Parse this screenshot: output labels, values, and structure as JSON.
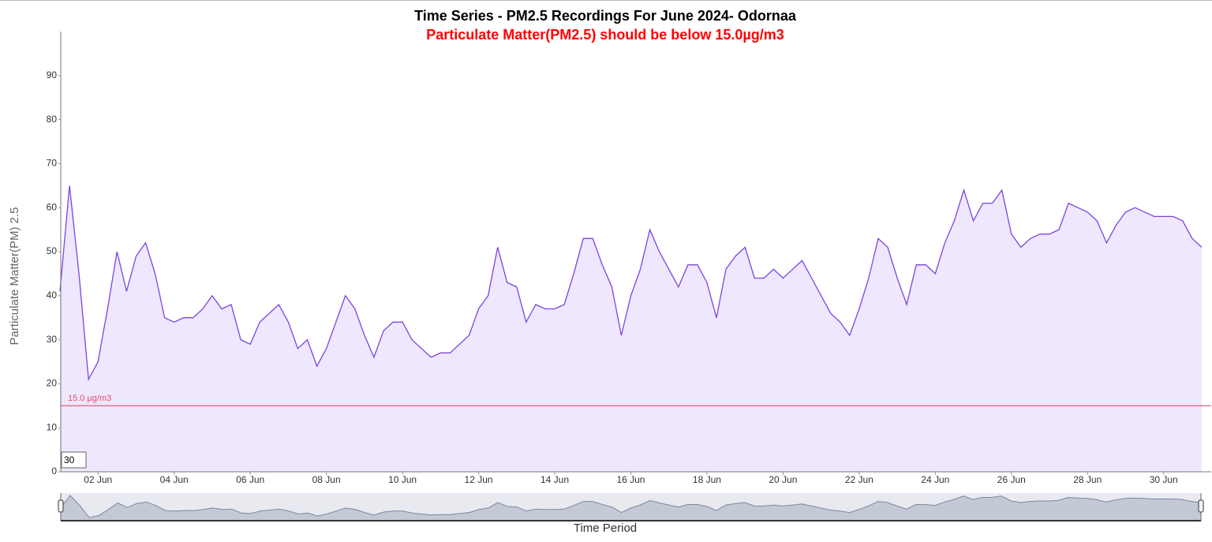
{
  "chart_data": {
    "type": "area",
    "title": "Time Series - PM2.5 Recordings For June 2024- Odornaa",
    "subtitle": "Particulate Matter(PM2.5) should be below 15.0µg/m3",
    "x_label": "Time Period",
    "y_label": "Particulate Matter(PM) 2.5",
    "range_input": "30",
    "threshold": {
      "value": 15,
      "label": "15.0 µg/m3",
      "color": "#e0506a"
    },
    "x": [
      "2024-06-01T00:00",
      "2024-06-01T06:00",
      "2024-06-01T12:00",
      "2024-06-01T18:00",
      "2024-06-02T00:00",
      "2024-06-02T06:00",
      "2024-06-02T12:00",
      "2024-06-02T18:00",
      "2024-06-03T00:00",
      "2024-06-03T06:00",
      "2024-06-03T12:00",
      "2024-06-03T18:00",
      "2024-06-04T00:00",
      "2024-06-04T06:00",
      "2024-06-04T12:00",
      "2024-06-04T18:00",
      "2024-06-05T00:00",
      "2024-06-05T06:00",
      "2024-06-05T12:00",
      "2024-06-05T18:00",
      "2024-06-06T00:00",
      "2024-06-06T06:00",
      "2024-06-06T12:00",
      "2024-06-06T18:00",
      "2024-06-07T00:00",
      "2024-06-07T06:00",
      "2024-06-07T12:00",
      "2024-06-07T18:00",
      "2024-06-08T00:00",
      "2024-06-08T06:00",
      "2024-06-08T12:00",
      "2024-06-08T18:00",
      "2024-06-09T00:00",
      "2024-06-09T06:00",
      "2024-06-09T12:00",
      "2024-06-09T18:00",
      "2024-06-10T00:00",
      "2024-06-10T06:00",
      "2024-06-10T12:00",
      "2024-06-10T18:00",
      "2024-06-11T00:00",
      "2024-06-11T06:00",
      "2024-06-11T12:00",
      "2024-06-11T18:00",
      "2024-06-12T00:00",
      "2024-06-12T06:00",
      "2024-06-12T12:00",
      "2024-06-12T18:00",
      "2024-06-13T00:00",
      "2024-06-13T06:00",
      "2024-06-13T12:00",
      "2024-06-13T18:00",
      "2024-06-14T00:00",
      "2024-06-14T06:00",
      "2024-06-14T12:00",
      "2024-06-14T18:00",
      "2024-06-15T00:00",
      "2024-06-15T06:00",
      "2024-06-15T12:00",
      "2024-06-15T18:00",
      "2024-06-16T00:00",
      "2024-06-16T06:00",
      "2024-06-16T12:00",
      "2024-06-16T18:00",
      "2024-06-17T00:00",
      "2024-06-17T06:00",
      "2024-06-17T12:00",
      "2024-06-17T18:00",
      "2024-06-18T00:00",
      "2024-06-18T06:00",
      "2024-06-18T12:00",
      "2024-06-18T18:00",
      "2024-06-19T00:00",
      "2024-06-19T06:00",
      "2024-06-19T12:00",
      "2024-06-19T18:00",
      "2024-06-20T00:00",
      "2024-06-20T06:00",
      "2024-06-20T12:00",
      "2024-06-20T18:00",
      "2024-06-21T00:00",
      "2024-06-21T06:00",
      "2024-06-21T12:00",
      "2024-06-21T18:00",
      "2024-06-22T00:00",
      "2024-06-22T06:00",
      "2024-06-22T12:00",
      "2024-06-22T18:00",
      "2024-06-23T00:00",
      "2024-06-23T06:00",
      "2024-06-23T12:00",
      "2024-06-23T18:00",
      "2024-06-24T00:00",
      "2024-06-24T06:00",
      "2024-06-24T12:00",
      "2024-06-24T18:00",
      "2024-06-25T00:00",
      "2024-06-25T06:00",
      "2024-06-25T12:00",
      "2024-06-25T18:00",
      "2024-06-26T00:00",
      "2024-06-26T06:00",
      "2024-06-26T12:00",
      "2024-06-26T18:00",
      "2024-06-27T00:00",
      "2024-06-27T06:00",
      "2024-06-27T12:00",
      "2024-06-27T18:00",
      "2024-06-28T00:00",
      "2024-06-28T06:00",
      "2024-06-28T12:00",
      "2024-06-28T18:00",
      "2024-06-29T00:00",
      "2024-06-29T06:00",
      "2024-06-29T12:00",
      "2024-06-29T18:00",
      "2024-06-30T00:00",
      "2024-06-30T06:00",
      "2024-06-30T12:00",
      "2024-06-30T18:00",
      "2024-07-01T00:00"
    ],
    "series": [
      {
        "name": "PM2.5",
        "color": "#7c44e0",
        "fill": "#efe7fd",
        "values": [
          41,
          65,
          45,
          21,
          25,
          37,
          50,
          41,
          49,
          52,
          45,
          35,
          34,
          35,
          35,
          37,
          40,
          37,
          38,
          30,
          29,
          34,
          36,
          38,
          34,
          28,
          30,
          24,
          28,
          34,
          40,
          37,
          31,
          26,
          32,
          34,
          34,
          30,
          28,
          26,
          27,
          27,
          29,
          31,
          37,
          40,
          51,
          43,
          42,
          34,
          38,
          37,
          37,
          38,
          45,
          53,
          53,
          47,
          42,
          31,
          40,
          46,
          55,
          50,
          46,
          42,
          47,
          47,
          43,
          35,
          46,
          49,
          51,
          44,
          44,
          46,
          44,
          46,
          48,
          44,
          40,
          36,
          34,
          31,
          37,
          44,
          53,
          51,
          44,
          38,
          47,
          47,
          45,
          52,
          57,
          64,
          57,
          61,
          61,
          64,
          54,
          51,
          53,
          54,
          54,
          55,
          61,
          60,
          59,
          57,
          52,
          56,
          59,
          60,
          59,
          58,
          58,
          58,
          57,
          53,
          51
        ]
      }
    ],
    "xlim": [
      "2024-06-01T00:00",
      "2024-07-01T06:00"
    ],
    "xticks": [
      {
        "value": "2024-06-02T00:00",
        "label": "02 Jun"
      },
      {
        "value": "2024-06-04T00:00",
        "label": "04 Jun"
      },
      {
        "value": "2024-06-06T00:00",
        "label": "06 Jun"
      },
      {
        "value": "2024-06-08T00:00",
        "label": "08 Jun"
      },
      {
        "value": "2024-06-10T00:00",
        "label": "10 Jun"
      },
      {
        "value": "2024-06-12T00:00",
        "label": "12 Jun"
      },
      {
        "value": "2024-06-14T00:00",
        "label": "14 Jun"
      },
      {
        "value": "2024-06-16T00:00",
        "label": "16 Jun"
      },
      {
        "value": "2024-06-18T00:00",
        "label": "18 Jun"
      },
      {
        "value": "2024-06-20T00:00",
        "label": "20 Jun"
      },
      {
        "value": "2024-06-22T00:00",
        "label": "22 Jun"
      },
      {
        "value": "2024-06-24T00:00",
        "label": "24 Jun"
      },
      {
        "value": "2024-06-26T00:00",
        "label": "26 Jun"
      },
      {
        "value": "2024-06-28T00:00",
        "label": "28 Jun"
      },
      {
        "value": "2024-06-30T00:00",
        "label": "30 Jun"
      }
    ],
    "ylim": [
      0,
      100
    ],
    "yticks": [
      0,
      10,
      20,
      30,
      40,
      50,
      60,
      70,
      80,
      90
    ]
  }
}
